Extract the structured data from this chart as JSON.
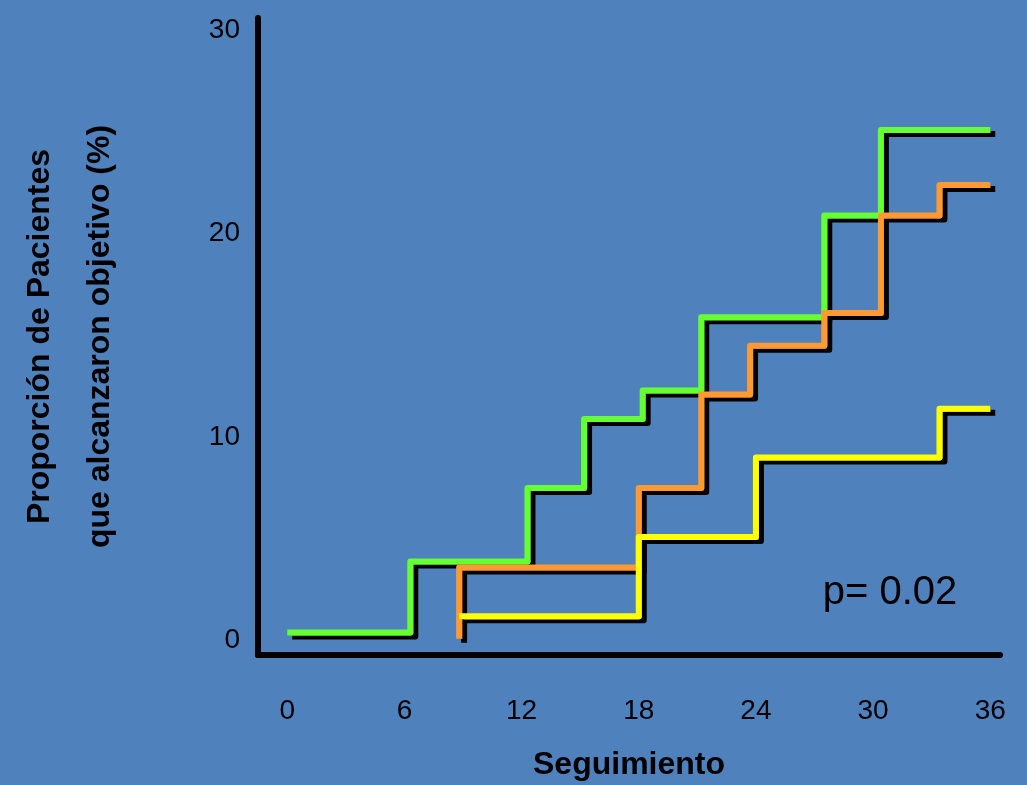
{
  "chart_data": {
    "type": "step",
    "xlabel": "Seguimiento",
    "ylabel": "Proporción de Pacientes\nque alcanzaron objetivo (%)",
    "xlim": [
      -1.5,
      36.5
    ],
    "ylim": [
      -0.8,
      30.5
    ],
    "xticks": [
      0,
      6,
      12,
      18,
      24,
      30,
      36
    ],
    "yticks": [
      0,
      10,
      20,
      30
    ],
    "grid": false,
    "marker": "none",
    "line_style": "solid",
    "annotations": [
      "p= 0.02"
    ],
    "series": [
      {
        "color": "#66ff33",
        "x": [
          0,
          6.3,
          12.3,
          15.2,
          18.2,
          21.2,
          27.5,
          30.4,
          36
        ],
        "values": [
          0.3,
          3.8,
          7.4,
          10.8,
          12.2,
          15.8,
          20.8,
          25,
          25
        ]
      },
      {
        "color": "#ff9933",
        "x": [
          8.8,
          8.8,
          18,
          21.2,
          23.7,
          27.5,
          30.4,
          33.4,
          36
        ],
        "values": [
          0,
          3.5,
          7.4,
          12,
          14.4,
          16,
          20.8,
          22.3,
          22.3
        ]
      },
      {
        "color": "#ffff00",
        "x": [
          8.8,
          18,
          24,
          33.4,
          36
        ],
        "values": [
          1.1,
          5,
          8.9,
          11.3,
          11.3
        ]
      }
    ]
  }
}
